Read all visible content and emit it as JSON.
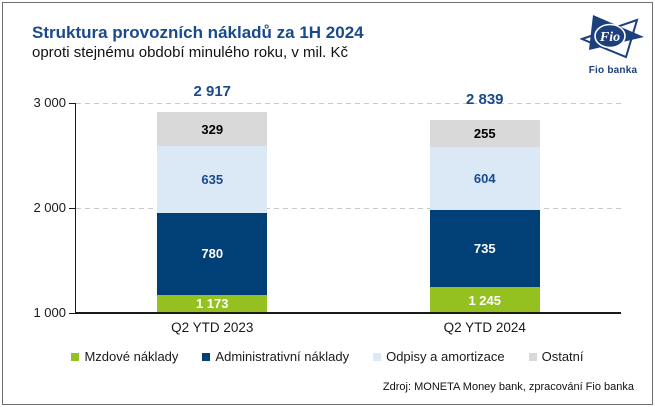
{
  "header": {
    "title": "Struktura provozních nákladů za 1H 2024",
    "subtitle": "oproti stejnému období minulého roku, v mil. Kč"
  },
  "logo": {
    "text": "Fio",
    "caption": "Fio banka"
  },
  "footer": {
    "source": "Zdroj: MONETA Money bank, zpracování Fio banka"
  },
  "colors": {
    "navy_text": "#1a4a8c",
    "navy_logo": "#1c3f7d",
    "axis": "#1a1a1a",
    "gridline": "#c8c8c8"
  },
  "chart_data": {
    "type": "bar",
    "stacked": true,
    "categories": [
      "Q2 YTD 2023",
      "Q2 YTD 2024"
    ],
    "series": [
      {
        "name": "Mzdové náklady",
        "color": "#94c11f",
        "label_color": "#ffffff",
        "values": [
          1173,
          1245
        ]
      },
      {
        "name": "Administrativní náklady",
        "color": "#004077",
        "label_color": "#ffffff",
        "values": [
          780,
          735
        ]
      },
      {
        "name": "Odpisy a amortizace",
        "color": "#dbe8f5",
        "label_color": "#1a4a8c",
        "values": [
          635,
          604
        ]
      },
      {
        "name": "Ostatní",
        "color": "#d9d9d9",
        "label_color": "#000000",
        "values": [
          329,
          255
        ]
      }
    ],
    "totals": [
      2917,
      2839
    ],
    "ylabel": "",
    "xlabel": "",
    "ylim": [
      1000,
      3000
    ],
    "ytick_step": 1000,
    "grid": "horizontal-dashed",
    "legend_position": "bottom"
  }
}
